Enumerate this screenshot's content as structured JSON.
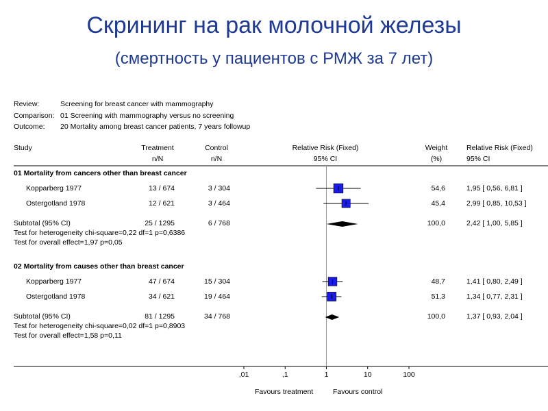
{
  "title": "Скрининг на рак молочной железы",
  "subtitle": "(смертность у пациентов с РМЖ за 7 лет)",
  "meta": {
    "review_label": "Review:",
    "review_value": "Screening for breast cancer with mammography",
    "comparison_label": "Comparison:",
    "comparison_value": "01 Screening with mammography versus no screening",
    "outcome_label": "Outcome:",
    "outcome_value": "20 Mortality among breast cancer patients, 7 years followup"
  },
  "headers": {
    "study": "Study",
    "treatment": "Treatment",
    "treatment_sub": "n/N",
    "control": "Control",
    "control_sub": "n/N",
    "rr": "Relative Risk (Fixed)",
    "rr_sub": "95% CI",
    "weight": "Weight",
    "weight_sub": "(%)",
    "rr2": "Relative Risk (Fixed)",
    "rr2_sub": "95% CI"
  },
  "chart_data": {
    "type": "forest",
    "xscale": "log",
    "xticks": [
      {
        "value": 0.01,
        "label": ",01"
      },
      {
        "value": 0.1,
        "label": ",1"
      },
      {
        "value": 1,
        "label": "1"
      },
      {
        "value": 10,
        "label": "10"
      },
      {
        "value": 100,
        "label": "100"
      }
    ],
    "favours_left": "Favours treatment",
    "favours_right": "Favours control",
    "groups": [
      {
        "title": "01 Mortality from cancers other than breast cancer",
        "studies": [
          {
            "name": "Kopparberg 1977",
            "treatment": "13 / 674",
            "control": "3 / 304",
            "weight": "54,6",
            "ci_text": "1,95 [ 0,56, 6,81 ]",
            "rr": 1.95,
            "lo": 0.56,
            "hi": 6.81,
            "w": 54.6
          },
          {
            "name": "Ostergotland 1978",
            "treatment": "12 / 621",
            "control": "3 / 464",
            "weight": "45,4",
            "ci_text": "2,99 [ 0,85, 10,53 ]",
            "rr": 2.99,
            "lo": 0.85,
            "hi": 10.53,
            "w": 45.4
          }
        ],
        "subtotal": {
          "label": "Subtotal (95% CI)",
          "treatment": "25 / 1295",
          "control": "6 / 768",
          "weight": "100,0",
          "ci_text": "2,42 [ 1,00, 5,85 ]",
          "rr": 2.42,
          "lo": 1.0,
          "hi": 5.85
        },
        "heterogeneity": "Test for heterogeneity chi-square=0,22 df=1 p=0,6386",
        "overall": "Test for overall effect=1,97 p=0,05"
      },
      {
        "title": "02 Mortality from causes other than breast cancer",
        "studies": [
          {
            "name": "Kopparberg 1977",
            "treatment": "47 / 674",
            "control": "15 / 304",
            "weight": "48,7",
            "ci_text": "1,41 [ 0,80, 2,49 ]",
            "rr": 1.41,
            "lo": 0.8,
            "hi": 2.49,
            "w": 48.7
          },
          {
            "name": "Ostergotland 1978",
            "treatment": "34 / 621",
            "control": "19 / 464",
            "weight": "51,3",
            "ci_text": "1,34 [ 0,77, 2,31 ]",
            "rr": 1.34,
            "lo": 0.77,
            "hi": 2.31,
            "w": 51.3
          }
        ],
        "subtotal": {
          "label": "Subtotal (95% CI)",
          "treatment": "81 / 1295",
          "control": "34 / 768",
          "weight": "100,0",
          "ci_text": "1,37 [ 0,93, 2,04 ]",
          "rr": 1.37,
          "lo": 0.93,
          "hi": 2.04
        },
        "heterogeneity": "Test for heterogeneity chi-square=0,02 df=1 p=0,8903",
        "overall": "Test for overall effect=1,58 p=0,11"
      }
    ],
    "colors": {
      "box": "#1a1ae6",
      "box_border": "#000000",
      "diamond": "#000000",
      "title": "#1f3a93"
    }
  }
}
